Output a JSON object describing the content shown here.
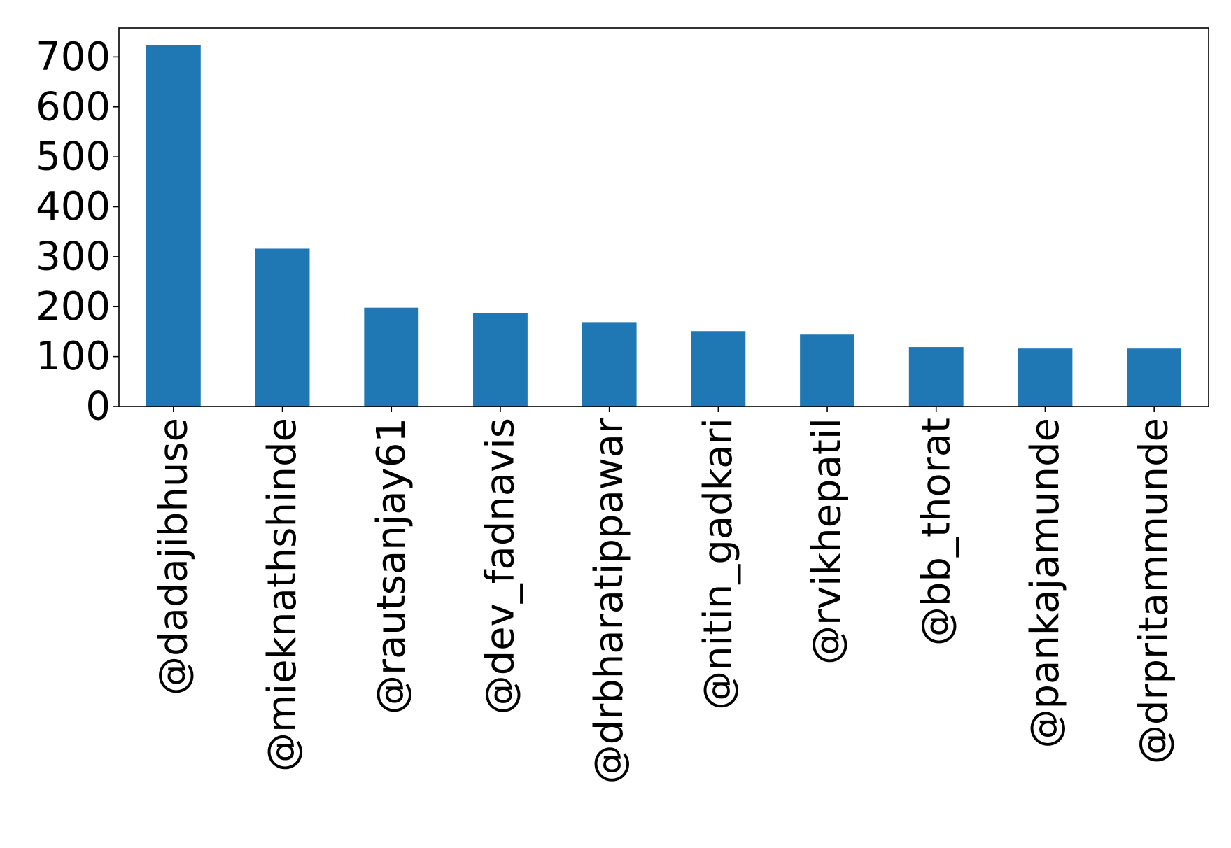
{
  "chart_data": {
    "type": "bar",
    "title": "",
    "xlabel": "",
    "ylabel": "",
    "categories": [
      "@dadajibhuse",
      "@mieknathshinde",
      "@rautsanjay61",
      "@dev_fadnavis",
      "@drbharatippawar",
      "@nitin_gadkari",
      "@rvikhepatil",
      "@bb_thorat",
      "@pankajamunde",
      "@drpritammunde"
    ],
    "values": [
      723,
      316,
      198,
      187,
      169,
      151,
      144,
      119,
      116,
      116
    ],
    "ylim": [
      0,
      758
    ],
    "yticks": [
      "0",
      "100",
      "200",
      "300",
      "400",
      "500",
      "600",
      "700"
    ],
    "bar_color": "#1f77b4",
    "grid": false,
    "legend": "none"
  }
}
